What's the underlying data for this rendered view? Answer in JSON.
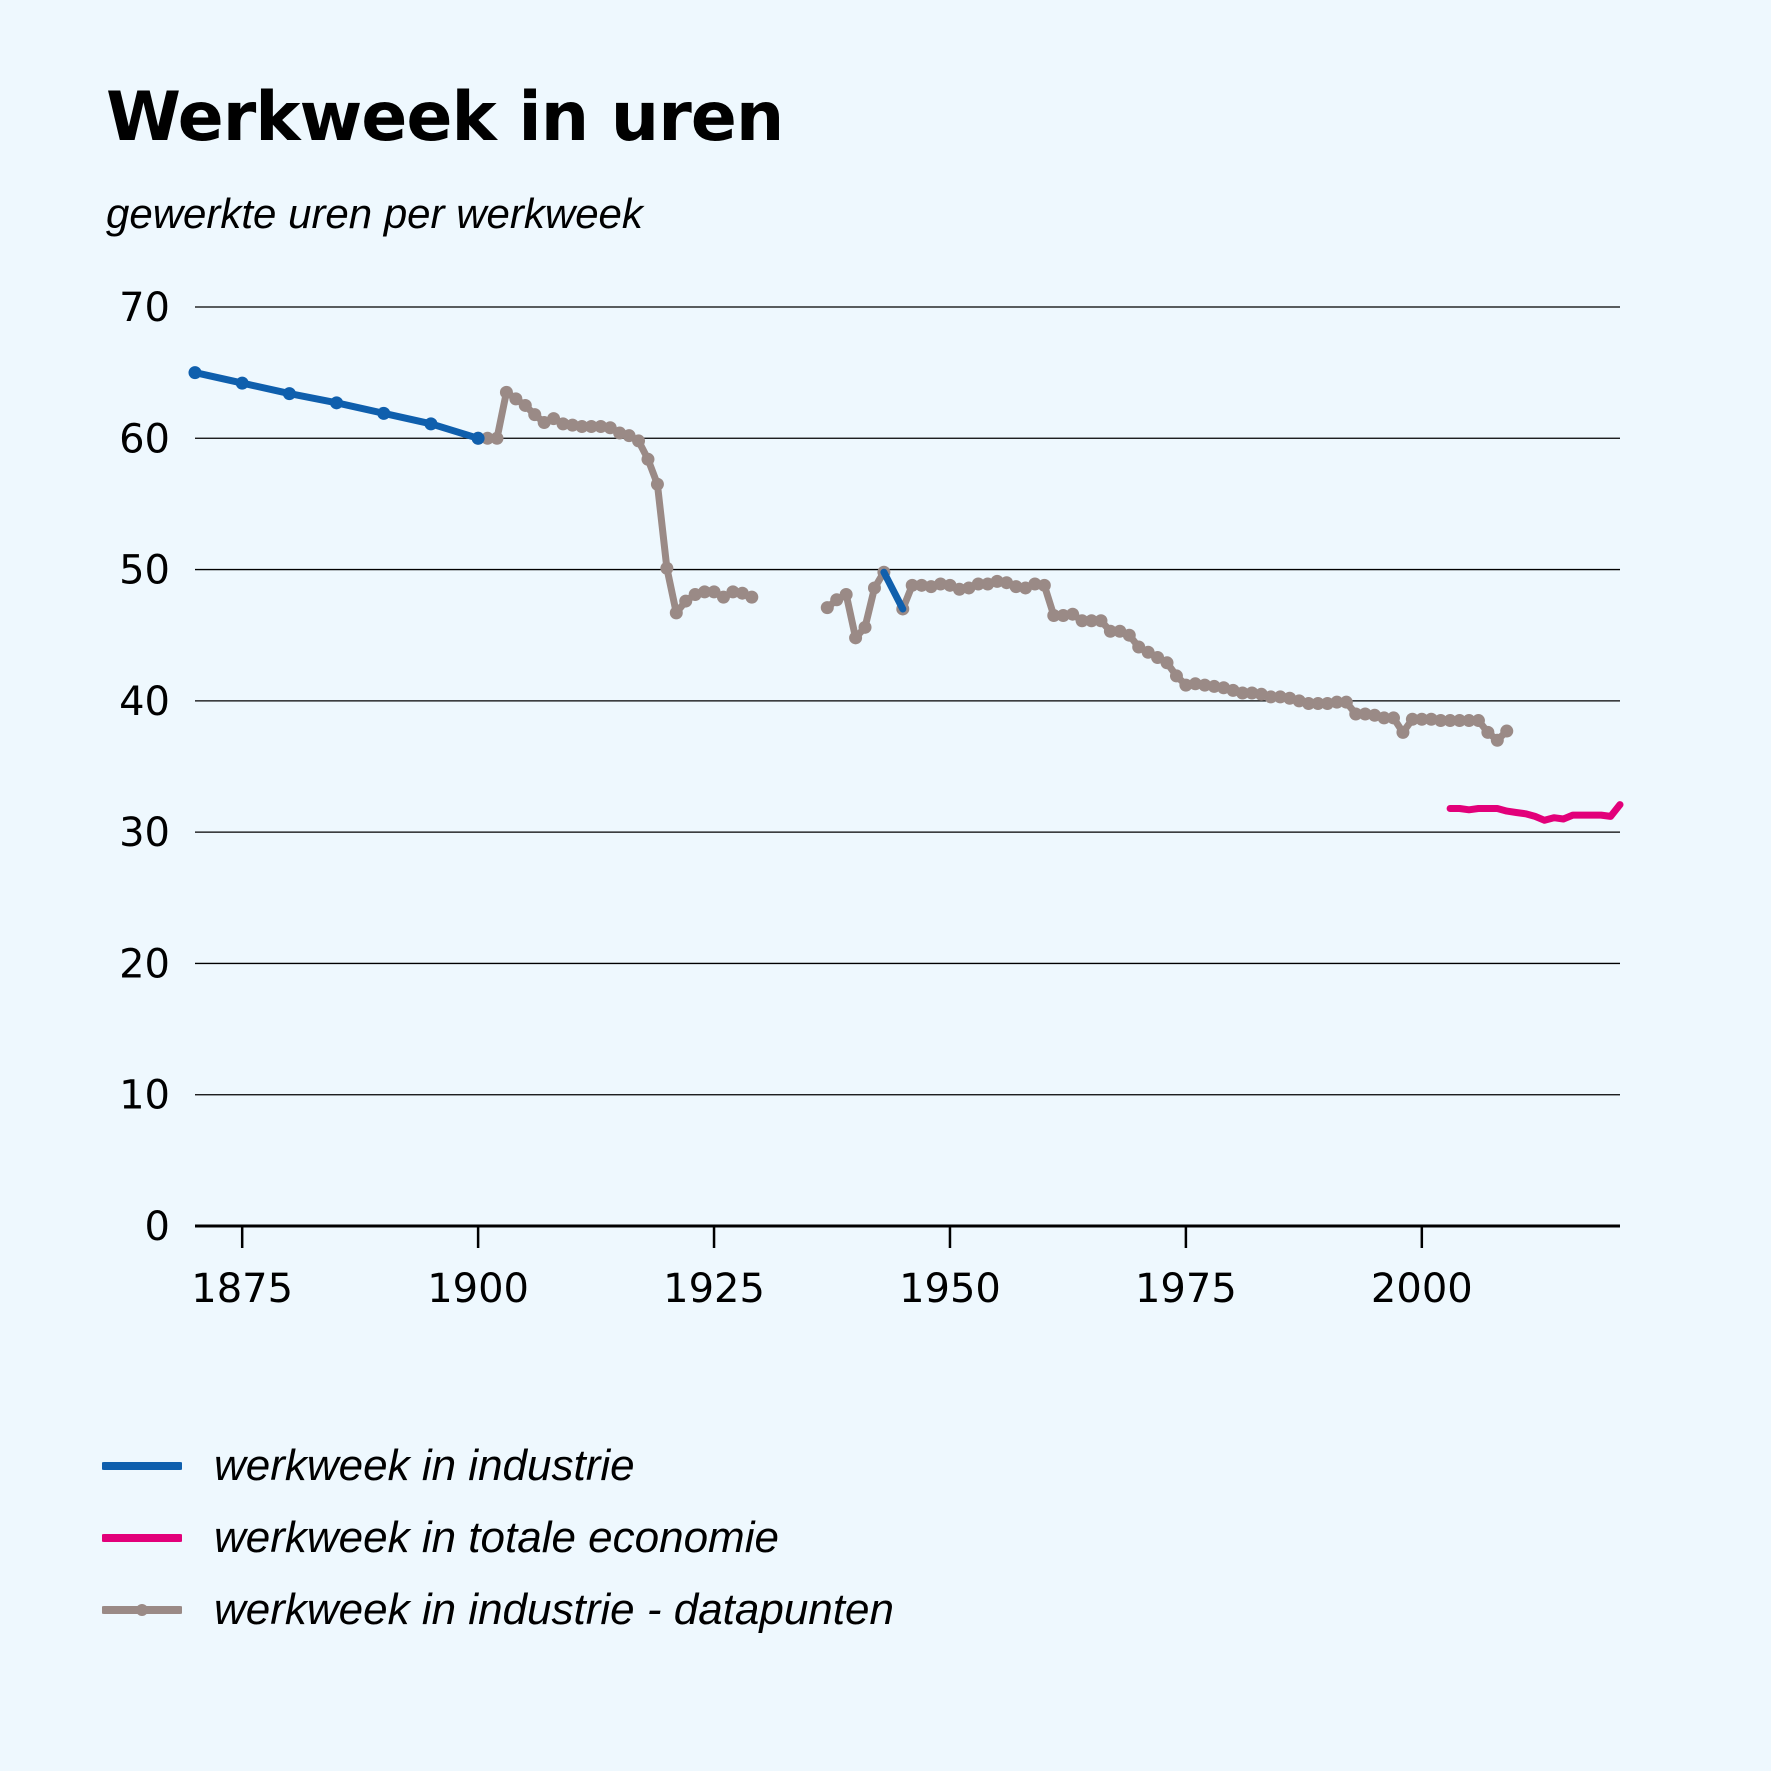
{
  "title": "Werkweek in uren",
  "subtitle": "gewerkte uren per werkweek",
  "colors": {
    "industry": "#0f5fad",
    "economy": "#e2007a",
    "datapoints": "#9a8a86",
    "background": "#eef8fe",
    "grid": "#000000"
  },
  "chart_data": {
    "type": "line",
    "title": "Werkweek in uren",
    "subtitle": "gewerkte uren per werkweek",
    "xlabel": "",
    "ylabel": "",
    "xlim": [
      1870,
      2021
    ],
    "ylim": [
      0,
      70
    ],
    "xticks": [
      1875,
      1900,
      1925,
      1950,
      1975,
      2000
    ],
    "yticks": [
      0,
      10,
      20,
      30,
      40,
      50,
      60,
      70
    ],
    "legend_position": "bottom",
    "series": [
      {
        "name": "werkweek in industrie",
        "color": "#0f5fad",
        "markers": true,
        "x": [
          1870,
          1875,
          1880,
          1885,
          1890,
          1895,
          1900
        ],
        "y": [
          65,
          64.2,
          63.4,
          62.7,
          61.9,
          61.1,
          60
        ]
      },
      {
        "name": "werkweek in industrie",
        "color": "#0f5fad",
        "markers": false,
        "x": [
          1943,
          1945
        ],
        "y": [
          49.8,
          47
        ]
      },
      {
        "name": "werkweek in totale economie",
        "color": "#e2007a",
        "markers": false,
        "x": [
          2003,
          2004,
          2005,
          2006,
          2007,
          2008,
          2009,
          2010,
          2011,
          2012,
          2013,
          2014,
          2015,
          2016,
          2017,
          2018,
          2019,
          2020,
          2021
        ],
        "y": [
          31.8,
          31.8,
          31.7,
          31.8,
          31.8,
          31.8,
          31.6,
          31.5,
          31.4,
          31.2,
          30.9,
          31.1,
          31.0,
          31.3,
          31.3,
          31.3,
          31.3,
          31.2,
          32.1
        ]
      },
      {
        "name": "werkweek in industrie - datapunten",
        "color": "#9a8a86",
        "markers": true,
        "segments": [
          {
            "x": [
              1900,
              1901,
              1902,
              1903,
              1904,
              1905,
              1906,
              1907,
              1908,
              1909,
              1910,
              1911,
              1912,
              1913,
              1914,
              1915,
              1916,
              1917,
              1918,
              1919,
              1920,
              1921,
              1922,
              1923,
              1924,
              1925,
              1926,
              1927,
              1928,
              1929
            ],
            "y": [
              60,
              60,
              60,
              63.5,
              63,
              62.5,
              61.8,
              61.2,
              61.5,
              61.1,
              61,
              60.9,
              60.9,
              60.9,
              60.8,
              60.4,
              60.2,
              59.8,
              58.4,
              56.5,
              50.1,
              46.7,
              47.6,
              48.1,
              48.3,
              48.3,
              47.9,
              48.3,
              48.2,
              47.9
            ]
          },
          {
            "x": [
              1937,
              1938,
              1939,
              1940,
              1941,
              1942,
              1943
            ],
            "y": [
              47.1,
              47.7,
              48.1,
              44.8,
              45.6,
              48.6,
              49.8
            ]
          },
          {
            "x": [
              1945,
              1946,
              1947,
              1948,
              1949,
              1950,
              1951,
              1952,
              1953,
              1954,
              1955,
              1956,
              1957,
              1958,
              1959,
              1960,
              1961,
              1962,
              1963,
              1964,
              1965,
              1966,
              1967,
              1968,
              1969,
              1970,
              1971,
              1972,
              1973,
              1974,
              1975,
              1976,
              1977,
              1978,
              1979,
              1980,
              1981,
              1982,
              1983,
              1984,
              1985,
              1986,
              1987,
              1988,
              1989,
              1990,
              1991,
              1992,
              1993,
              1994,
              1995,
              1996,
              1997,
              1998,
              1999,
              2000,
              2001,
              2002,
              2003,
              2004,
              2005,
              2006,
              2007,
              2008,
              2009
            ],
            "y": [
              47,
              48.8,
              48.8,
              48.7,
              48.9,
              48.8,
              48.5,
              48.6,
              48.9,
              48.9,
              49.1,
              49.0,
              48.7,
              48.6,
              48.9,
              48.8,
              46.5,
              46.5,
              46.6,
              46.1,
              46.1,
              46.1,
              45.3,
              45.3,
              45.0,
              44.1,
              43.7,
              43.3,
              42.9,
              41.9,
              41.2,
              41.3,
              41.2,
              41.1,
              41.0,
              40.8,
              40.6,
              40.6,
              40.5,
              40.3,
              40.3,
              40.2,
              40.0,
              39.8,
              39.8,
              39.8,
              39.9,
              39.9,
              39.0,
              39.0,
              38.9,
              38.7,
              38.7,
              37.6,
              38.6,
              38.6,
              38.6,
              38.5,
              38.5,
              38.5,
              38.5,
              38.5,
              37.6,
              37.0,
              37.7
            ]
          }
        ]
      }
    ]
  },
  "legend": {
    "items": [
      {
        "label": "werkweek in industrie",
        "color": "#0f5fad",
        "marker": false
      },
      {
        "label": "werkweek in totale economie",
        "color": "#e2007a",
        "marker": false
      },
      {
        "label": "werkweek in industrie - datapunten",
        "color": "#9a8a86",
        "marker": true
      }
    ]
  }
}
